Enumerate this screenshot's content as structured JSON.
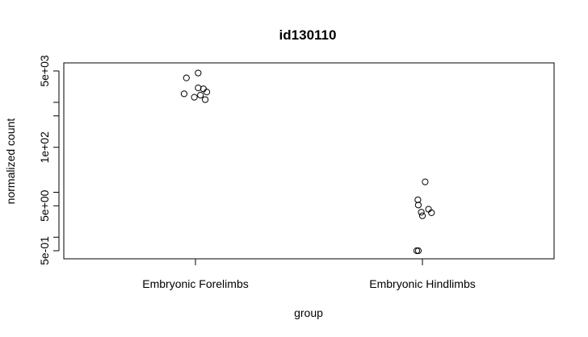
{
  "chart_data": {
    "type": "scatter",
    "title": "id130110",
    "xlabel": "group",
    "ylabel": "normalized count",
    "y_scale": "log",
    "ylim": [
      0.4,
      5500
    ],
    "categories": [
      "Embryonic Forelimbs",
      "Embryonic Hindlimbs"
    ],
    "y_ticks": [
      {
        "value": 0.5,
        "label": "5e-01"
      },
      {
        "value": 1,
        "label": ""
      },
      {
        "value": 5,
        "label": "5e+00"
      },
      {
        "value": 10,
        "label": ""
      },
      {
        "value": 100,
        "label": "1e+02"
      },
      {
        "value": 500,
        "label": ""
      },
      {
        "value": 1000,
        "label": ""
      },
      {
        "value": 5000,
        "label": "5e+03"
      }
    ],
    "series": [
      {
        "category": "Embryonic Forelimbs",
        "points": [
          {
            "jitter": 0.012,
            "y": 4500
          },
          {
            "jitter": -0.04,
            "y": 3500
          },
          {
            "jitter": 0.012,
            "y": 2100
          },
          {
            "jitter": 0.035,
            "y": 2000
          },
          {
            "jitter": 0.05,
            "y": 1700
          },
          {
            "jitter": -0.05,
            "y": 1550
          },
          {
            "jitter": 0.022,
            "y": 1450
          },
          {
            "jitter": -0.005,
            "y": 1300
          },
          {
            "jitter": 0.043,
            "y": 1150
          }
        ]
      },
      {
        "category": "Embryonic Hindlimbs",
        "points": [
          {
            "jitter": 0.012,
            "y": 17
          },
          {
            "jitter": -0.02,
            "y": 6.8
          },
          {
            "jitter": -0.018,
            "y": 5.2
          },
          {
            "jitter": 0.027,
            "y": 4.2
          },
          {
            "jitter": 0.04,
            "y": 3.5
          },
          {
            "jitter": -0.005,
            "y": 3.6
          },
          {
            "jitter": 0.0,
            "y": 3.0
          },
          {
            "jitter": -0.025,
            "y": 0.5
          },
          {
            "jitter": -0.018,
            "y": 0.5
          }
        ]
      }
    ]
  }
}
